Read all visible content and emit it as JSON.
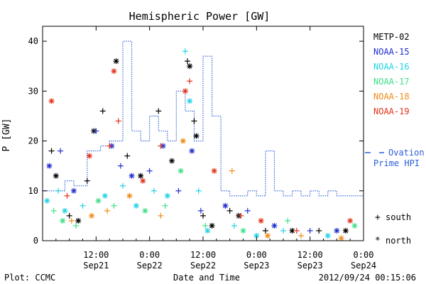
{
  "chart_data": {
    "type": "scatter",
    "title": "Hemispheric Power [GW]",
    "ylabel": "P [GW]",
    "xlabel": "Date and Time",
    "ylim": [
      0,
      43
    ],
    "y_ticks": [
      0,
      10,
      20,
      30,
      40
    ],
    "x_ticks": [
      {
        "top": "",
        "bottom": ""
      },
      {
        "top": "12:00",
        "bottom": "Sep21"
      },
      {
        "top": "0:00",
        "bottom": "Sep22"
      },
      {
        "top": "12:00",
        "bottom": "Sep22"
      },
      {
        "top": "0:00",
        "bottom": "Sep23"
      },
      {
        "top": "12:00",
        "bottom": "Sep23"
      },
      {
        "top": "0:00",
        "bottom": "Sep24"
      }
    ],
    "x_unit": "hours since 2012-09-21 00:00",
    "xlim": [
      0,
      72
    ],
    "satellites": [
      {
        "name": "METP-02",
        "color": "#000000"
      },
      {
        "name": "NOAA-15",
        "color": "#1f2fd0"
      },
      {
        "name": "NOAA-16",
        "color": "#22d3e6"
      },
      {
        "name": "NOAA-17",
        "color": "#3ee089"
      },
      {
        "name": "NOAA-18",
        "color": "#f08c16"
      },
      {
        "name": "NOAA-19",
        "color": "#e2331c"
      }
    ],
    "ovation": {
      "label_line1": "Ovation",
      "label_line2": "Prime HPI",
      "color": "#2a5ed8",
      "x": [
        0,
        5,
        7,
        10,
        13,
        15,
        18,
        20,
        22,
        24,
        26,
        28,
        30,
        32,
        34,
        36,
        38,
        40,
        42,
        44,
        46,
        48,
        50,
        52,
        54,
        56,
        58,
        60,
        62,
        64,
        66,
        68,
        70,
        72
      ],
      "y": [
        10,
        12,
        11,
        18,
        19,
        20,
        40,
        22,
        20,
        25,
        22,
        20,
        30,
        26,
        20,
        37,
        25,
        10,
        9,
        9,
        10,
        9,
        18,
        10,
        9,
        10,
        9,
        10,
        9,
        10,
        9,
        9,
        9,
        10
      ]
    },
    "symbol_legend": [
      {
        "symbol": "+",
        "label": "south"
      },
      {
        "symbol": "*",
        "label": "north"
      }
    ],
    "scatter_points": [
      {
        "sat": 0,
        "sym": "+",
        "x": 2.0,
        "y": 18
      },
      {
        "sat": 0,
        "sym": "*",
        "x": 3.0,
        "y": 13
      },
      {
        "sat": 0,
        "sym": "+",
        "x": 6.0,
        "y": 5
      },
      {
        "sat": 0,
        "sym": "*",
        "x": 8.0,
        "y": 4
      },
      {
        "sat": 0,
        "sym": "+",
        "x": 10.0,
        "y": 12
      },
      {
        "sat": 0,
        "sym": "*",
        "x": 11.5,
        "y": 22
      },
      {
        "sat": 0,
        "sym": "+",
        "x": 13.5,
        "y": 26
      },
      {
        "sat": 0,
        "sym": "*",
        "x": 16.5,
        "y": 36
      },
      {
        "sat": 0,
        "sym": "+",
        "x": 19.0,
        "y": 17
      },
      {
        "sat": 0,
        "sym": "*",
        "x": 22.0,
        "y": 13
      },
      {
        "sat": 0,
        "sym": "+",
        "x": 26.0,
        "y": 26
      },
      {
        "sat": 0,
        "sym": "*",
        "x": 29.0,
        "y": 16
      },
      {
        "sat": 0,
        "sym": "+",
        "x": 32.5,
        "y": 36
      },
      {
        "sat": 0,
        "sym": "*",
        "x": 33.0,
        "y": 35
      },
      {
        "sat": 0,
        "sym": "+",
        "x": 34.0,
        "y": 24
      },
      {
        "sat": 0,
        "sym": "*",
        "x": 34.5,
        "y": 21
      },
      {
        "sat": 0,
        "sym": "+",
        "x": 36.0,
        "y": 5
      },
      {
        "sat": 0,
        "sym": "*",
        "x": 38.0,
        "y": 3
      },
      {
        "sat": 0,
        "sym": "+",
        "x": 42.0,
        "y": 6
      },
      {
        "sat": 0,
        "sym": "*",
        "x": 44.0,
        "y": 5
      },
      {
        "sat": 0,
        "sym": "+",
        "x": 50.0,
        "y": 2
      },
      {
        "sat": 0,
        "sym": "*",
        "x": 56.0,
        "y": 2
      },
      {
        "sat": 0,
        "sym": "+",
        "x": 62.0,
        "y": 2
      },
      {
        "sat": 0,
        "sym": "*",
        "x": 68.0,
        "y": 2
      },
      {
        "sat": 1,
        "sym": "*",
        "x": 1.5,
        "y": 15
      },
      {
        "sat": 1,
        "sym": "+",
        "x": 4.0,
        "y": 18
      },
      {
        "sat": 1,
        "sym": "*",
        "x": 7.0,
        "y": 10
      },
      {
        "sat": 1,
        "sym": "+",
        "x": 12.0,
        "y": 22
      },
      {
        "sat": 1,
        "sym": "*",
        "x": 15.5,
        "y": 19
      },
      {
        "sat": 1,
        "sym": "+",
        "x": 17.5,
        "y": 15
      },
      {
        "sat": 1,
        "sym": "*",
        "x": 20.0,
        "y": 13
      },
      {
        "sat": 1,
        "sym": "+",
        "x": 24.0,
        "y": 14
      },
      {
        "sat": 1,
        "sym": "*",
        "x": 27.0,
        "y": 19
      },
      {
        "sat": 1,
        "sym": "+",
        "x": 30.5,
        "y": 10
      },
      {
        "sat": 1,
        "sym": "*",
        "x": 33.5,
        "y": 18
      },
      {
        "sat": 1,
        "sym": "+",
        "x": 35.5,
        "y": 6
      },
      {
        "sat": 1,
        "sym": "*",
        "x": 41.0,
        "y": 7
      },
      {
        "sat": 1,
        "sym": "+",
        "x": 46.0,
        "y": 6
      },
      {
        "sat": 1,
        "sym": "*",
        "x": 52.0,
        "y": 3
      },
      {
        "sat": 1,
        "sym": "+",
        "x": 60.0,
        "y": 2
      },
      {
        "sat": 1,
        "sym": "*",
        "x": 66.0,
        "y": 2
      },
      {
        "sat": 2,
        "sym": "*",
        "x": 1.0,
        "y": 8
      },
      {
        "sat": 2,
        "sym": "+",
        "x": 3.5,
        "y": 10
      },
      {
        "sat": 2,
        "sym": "*",
        "x": 5.0,
        "y": 6
      },
      {
        "sat": 2,
        "sym": "+",
        "x": 9.0,
        "y": 7
      },
      {
        "sat": 2,
        "sym": "*",
        "x": 14.0,
        "y": 9
      },
      {
        "sat": 2,
        "sym": "+",
        "x": 18.0,
        "y": 11
      },
      {
        "sat": 2,
        "sym": "*",
        "x": 21.0,
        "y": 7
      },
      {
        "sat": 2,
        "sym": "+",
        "x": 25.0,
        "y": 10
      },
      {
        "sat": 2,
        "sym": "*",
        "x": 28.0,
        "y": 9
      },
      {
        "sat": 2,
        "sym": "+",
        "x": 32.0,
        "y": 38
      },
      {
        "sat": 2,
        "sym": "*",
        "x": 33.0,
        "y": 28
      },
      {
        "sat": 2,
        "sym": "+",
        "x": 35.0,
        "y": 10
      },
      {
        "sat": 2,
        "sym": "*",
        "x": 37.0,
        "y": 2
      },
      {
        "sat": 2,
        "sym": "+",
        "x": 43.0,
        "y": 3
      },
      {
        "sat": 2,
        "sym": "*",
        "x": 48.0,
        "y": 1
      },
      {
        "sat": 2,
        "sym": "+",
        "x": 54.0,
        "y": 2
      },
      {
        "sat": 2,
        "sym": "*",
        "x": 64.0,
        "y": 1
      },
      {
        "sat": 3,
        "sym": "+",
        "x": 2.5,
        "y": 6
      },
      {
        "sat": 3,
        "sym": "*",
        "x": 4.5,
        "y": 4
      },
      {
        "sat": 3,
        "sym": "+",
        "x": 7.5,
        "y": 3
      },
      {
        "sat": 3,
        "sym": "*",
        "x": 12.5,
        "y": 8
      },
      {
        "sat": 3,
        "sym": "+",
        "x": 16.0,
        "y": 7
      },
      {
        "sat": 3,
        "sym": "*",
        "x": 23.0,
        "y": 6
      },
      {
        "sat": 3,
        "sym": "+",
        "x": 27.5,
        "y": 7
      },
      {
        "sat": 3,
        "sym": "*",
        "x": 31.0,
        "y": 14
      },
      {
        "sat": 3,
        "sym": "+",
        "x": 36.5,
        "y": 3
      },
      {
        "sat": 3,
        "sym": "*",
        "x": 45.0,
        "y": 2
      },
      {
        "sat": 3,
        "sym": "+",
        "x": 55.0,
        "y": 4
      },
      {
        "sat": 3,
        "sym": "*",
        "x": 70.0,
        "y": 3
      },
      {
        "sat": 4,
        "sym": "+",
        "x": 6.5,
        "y": 4
      },
      {
        "sat": 4,
        "sym": "*",
        "x": 11.0,
        "y": 5
      },
      {
        "sat": 4,
        "sym": "+",
        "x": 14.5,
        "y": 6
      },
      {
        "sat": 4,
        "sym": "*",
        "x": 19.5,
        "y": 9
      },
      {
        "sat": 4,
        "sym": "+",
        "x": 26.5,
        "y": 5
      },
      {
        "sat": 4,
        "sym": "*",
        "x": 31.5,
        "y": 20
      },
      {
        "sat": 4,
        "sym": "+",
        "x": 42.5,
        "y": 14
      },
      {
        "sat": 4,
        "sym": "*",
        "x": 50.5,
        "y": 1
      },
      {
        "sat": 4,
        "sym": "+",
        "x": 58.0,
        "y": 1
      },
      {
        "sat": 4,
        "sym": "*",
        "x": 67.0,
        "y": 0.5
      },
      {
        "sat": 5,
        "sym": "*",
        "x": 2.0,
        "y": 28
      },
      {
        "sat": 5,
        "sym": "+",
        "x": 5.5,
        "y": 9
      },
      {
        "sat": 5,
        "sym": "*",
        "x": 10.5,
        "y": 17
      },
      {
        "sat": 5,
        "sym": "+",
        "x": 15.0,
        "y": 19
      },
      {
        "sat": 5,
        "sym": "*",
        "x": 16.0,
        "y": 34
      },
      {
        "sat": 5,
        "sym": "+",
        "x": 17.0,
        "y": 24
      },
      {
        "sat": 5,
        "sym": "*",
        "x": 22.5,
        "y": 12
      },
      {
        "sat": 5,
        "sym": "+",
        "x": 26.5,
        "y": 19
      },
      {
        "sat": 5,
        "sym": "*",
        "x": 32.0,
        "y": 30
      },
      {
        "sat": 5,
        "sym": "+",
        "x": 33.0,
        "y": 32
      },
      {
        "sat": 5,
        "sym": "*",
        "x": 38.5,
        "y": 14
      },
      {
        "sat": 5,
        "sym": "+",
        "x": 44.5,
        "y": 5
      },
      {
        "sat": 5,
        "sym": "*",
        "x": 49.0,
        "y": 4
      },
      {
        "sat": 5,
        "sym": "+",
        "x": 57.0,
        "y": 2
      },
      {
        "sat": 5,
        "sym": "*",
        "x": 69.0,
        "y": 4
      }
    ]
  },
  "footer": {
    "plot_credit": "Plot: CCMC",
    "timestamp": "2012/09/24 00:15:06"
  }
}
